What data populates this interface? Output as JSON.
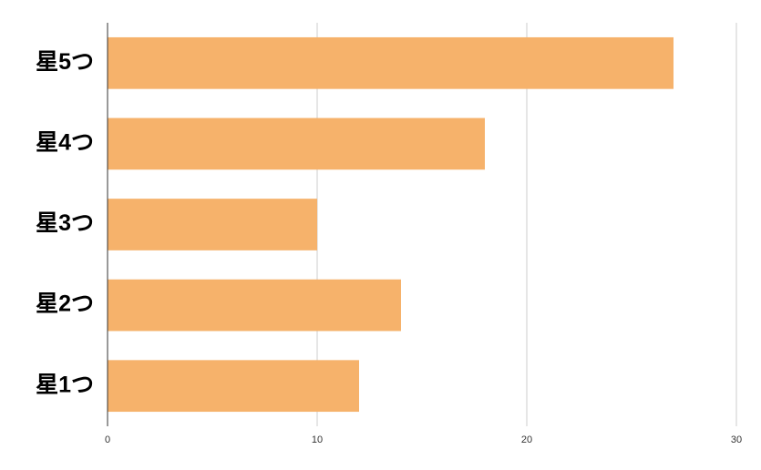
{
  "chart_data": {
    "type": "hbar",
    "categories": [
      "星5つ",
      "星4つ",
      "星3つ",
      "星2つ",
      "星1つ"
    ],
    "values": [
      27,
      18,
      10,
      14,
      12
    ],
    "color": "#f6b26b",
    "xlim": [
      0,
      30
    ],
    "xticks": [
      0,
      10,
      20,
      30
    ],
    "grid": true
  }
}
